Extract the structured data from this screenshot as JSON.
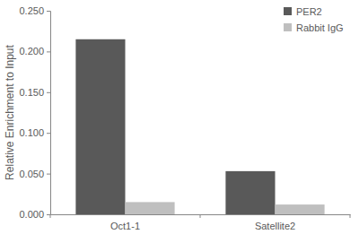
{
  "chart_data": {
    "type": "bar",
    "y_label": "Relative Enrichment to Input",
    "categories": [
      "Oct1-1",
      "Satellite2"
    ],
    "series": [
      {
        "name": "PER2",
        "color": "#595959",
        "values": [
          0.215,
          0.053
        ]
      },
      {
        "name": "Rabbit IgG",
        "color": "#bfbfbf",
        "values": [
          0.015,
          0.012
        ]
      }
    ],
    "ylim": [
      0,
      0.25
    ],
    "yticks": [
      {
        "value": 0,
        "label": "0.000"
      },
      {
        "value": 0.05,
        "label": "0.050"
      },
      {
        "value": 0.1,
        "label": "0.100"
      },
      {
        "value": 0.15,
        "label": "0.150"
      },
      {
        "value": 0.2,
        "label": "0.200"
      },
      {
        "value": 0.25,
        "label": "0.250"
      }
    ],
    "grid": false,
    "legend": "top-right"
  }
}
